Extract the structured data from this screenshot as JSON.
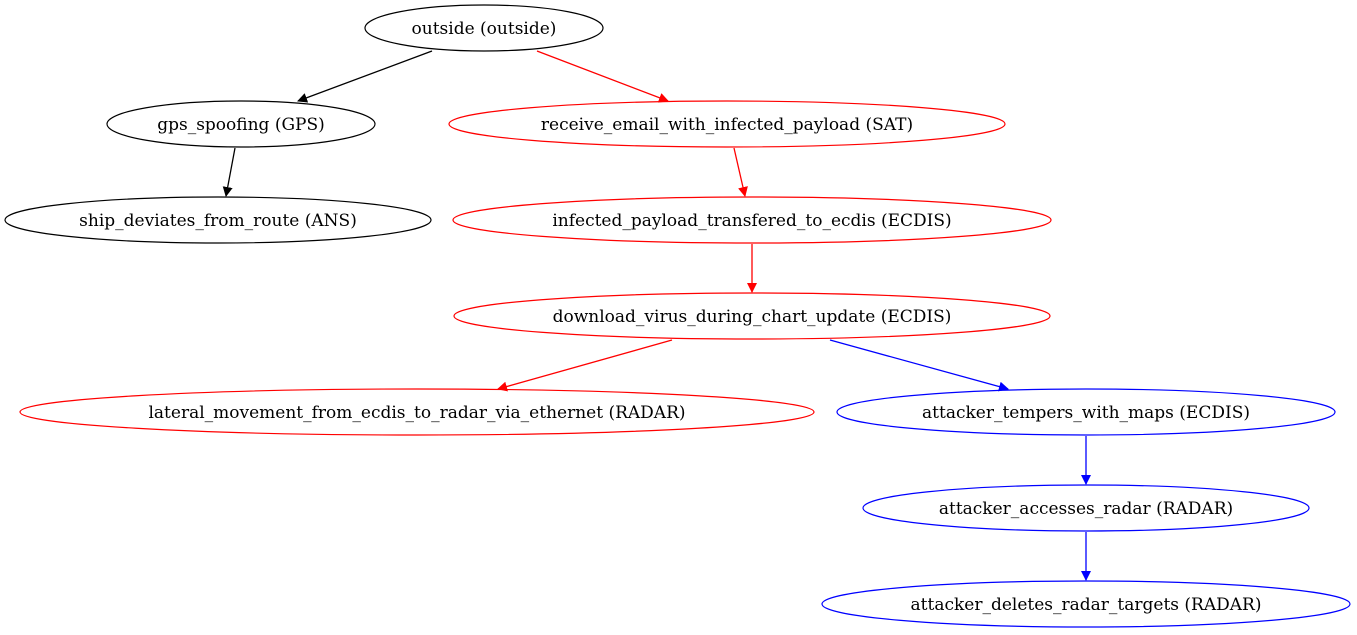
{
  "diagram": {
    "type": "directed-graph",
    "colors": {
      "default": "#000000",
      "red_path": "#ff0000",
      "blue_path": "#0000ff"
    },
    "nodes": [
      {
        "id": "outside",
        "label": "outside (outside)",
        "color": "#000000"
      },
      {
        "id": "gps_spoofing",
        "label": "gps_spoofing (GPS)",
        "color": "#000000"
      },
      {
        "id": "receive_email",
        "label": "receive_email_with_infected_payload (SAT)",
        "color": "#ff0000"
      },
      {
        "id": "ship_deviates",
        "label": "ship_deviates_from_route (ANS)",
        "color": "#000000"
      },
      {
        "id": "infected_payload",
        "label": "infected_payload_transfered_to_ecdis (ECDIS)",
        "color": "#ff0000"
      },
      {
        "id": "download_virus",
        "label": "download_virus_during_chart_update (ECDIS)",
        "color": "#ff0000"
      },
      {
        "id": "lateral_movement",
        "label": "lateral_movement_from_ecdis_to_radar_via_ethernet (RADAR)",
        "color": "#ff0000"
      },
      {
        "id": "tempers_maps",
        "label": "attacker_tempers_with_maps (ECDIS)",
        "color": "#0000ff"
      },
      {
        "id": "accesses_radar",
        "label": "attacker_accesses_radar (RADAR)",
        "color": "#0000ff"
      },
      {
        "id": "deletes_targets",
        "label": "attacker_deletes_radar_targets (RADAR)",
        "color": "#0000ff"
      }
    ],
    "edges": [
      {
        "from": "outside",
        "to": "gps_spoofing",
        "color": "#000000"
      },
      {
        "from": "outside",
        "to": "receive_email",
        "color": "#ff0000"
      },
      {
        "from": "gps_spoofing",
        "to": "ship_deviates",
        "color": "#000000"
      },
      {
        "from": "receive_email",
        "to": "infected_payload",
        "color": "#ff0000"
      },
      {
        "from": "infected_payload",
        "to": "download_virus",
        "color": "#ff0000"
      },
      {
        "from": "download_virus",
        "to": "lateral_movement",
        "color": "#ff0000"
      },
      {
        "from": "download_virus",
        "to": "tempers_maps",
        "color": "#0000ff"
      },
      {
        "from": "tempers_maps",
        "to": "accesses_radar",
        "color": "#0000ff"
      },
      {
        "from": "accesses_radar",
        "to": "deletes_targets",
        "color": "#0000ff"
      }
    ]
  }
}
